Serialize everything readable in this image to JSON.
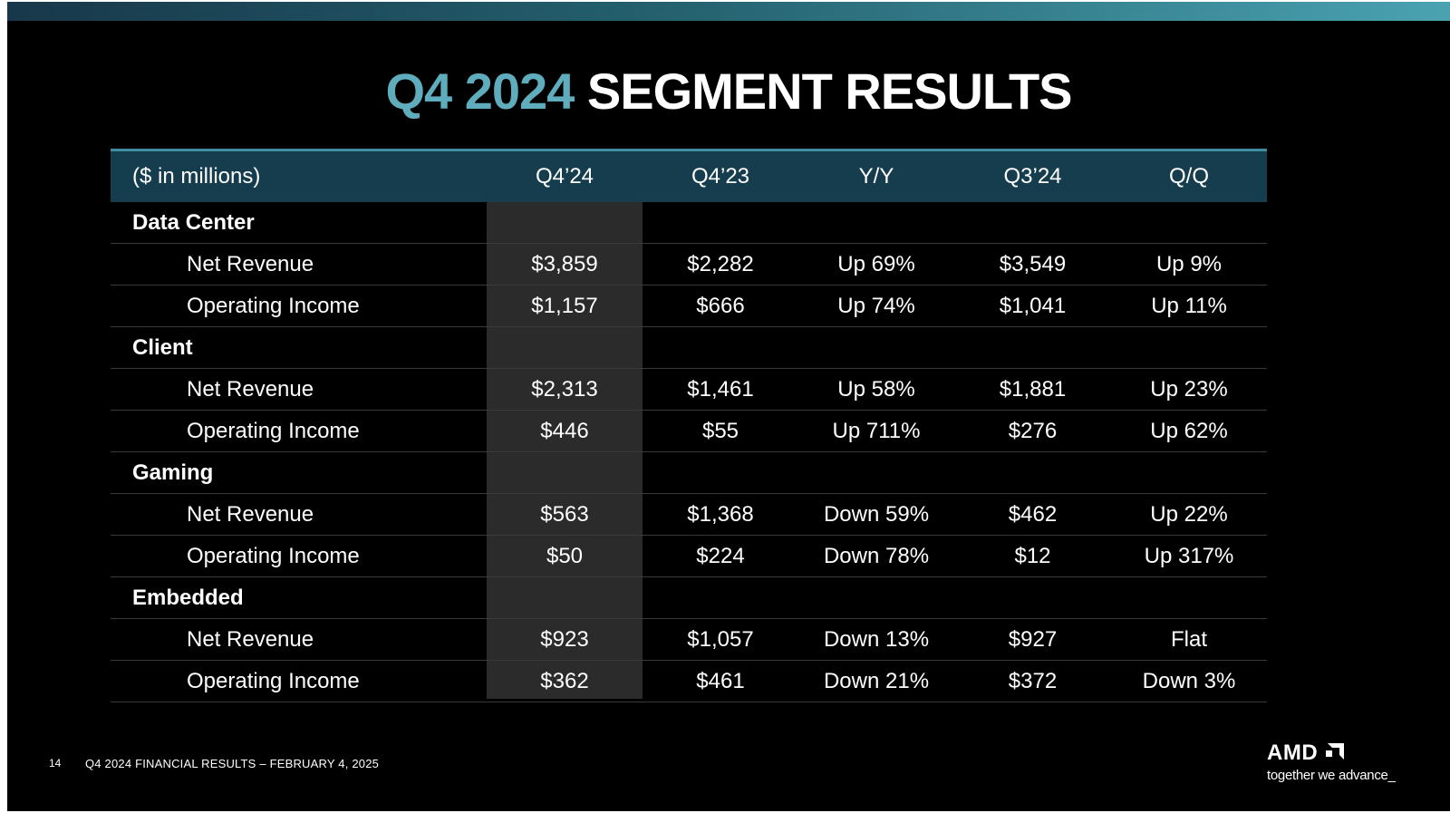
{
  "title": {
    "accent": "Q4 2024",
    "main": "SEGMENT RESULTS"
  },
  "table": {
    "headers": [
      "($ in millions)",
      "Q4’24",
      "Q4’23",
      "Y/Y",
      "Q3’24",
      "Q/Q"
    ],
    "segments": [
      {
        "name": "Data Center",
        "rows": [
          {
            "metric": "Net Revenue",
            "q4_24": "$3,859",
            "q4_23": "$2,282",
            "yy": "Up 69%",
            "q3_24": "$3,549",
            "qq": "Up 9%"
          },
          {
            "metric": "Operating Income",
            "q4_24": "$1,157",
            "q4_23": "$666",
            "yy": "Up 74%",
            "q3_24": "$1,041",
            "qq": "Up 11%"
          }
        ]
      },
      {
        "name": "Client",
        "rows": [
          {
            "metric": "Net Revenue",
            "q4_24": "$2,313",
            "q4_23": "$1,461",
            "yy": "Up 58%",
            "q3_24": "$1,881",
            "qq": "Up 23%"
          },
          {
            "metric": "Operating Income",
            "q4_24": "$446",
            "q4_23": "$55",
            "yy": "Up 711%",
            "q3_24": "$276",
            "qq": "Up 62%"
          }
        ]
      },
      {
        "name": "Gaming",
        "rows": [
          {
            "metric": "Net Revenue",
            "q4_24": "$563",
            "q4_23": "$1,368",
            "yy": "Down 59%",
            "q3_24": "$462",
            "qq": "Up 22%"
          },
          {
            "metric": "Operating Income",
            "q4_24": "$50",
            "q4_23": "$224",
            "yy": "Down 78%",
            "q3_24": "$12",
            "qq": "Up 317%"
          }
        ]
      },
      {
        "name": "Embedded",
        "rows": [
          {
            "metric": "Net Revenue",
            "q4_24": "$923",
            "q4_23": "$1,057",
            "yy": "Down 13%",
            "q3_24": "$927",
            "qq": "Flat"
          },
          {
            "metric": "Operating Income",
            "q4_24": "$362",
            "q4_23": "$461",
            "yy": "Down 21%",
            "q3_24": "$372",
            "qq": "Down 3%"
          }
        ]
      }
    ]
  },
  "footer": {
    "page_number": "14",
    "text": "Q4 2024 FINANCIAL RESULTS – FEBRUARY 4, 2025"
  },
  "logo": {
    "wordmark": "AMD",
    "tagline": "together we advance_"
  },
  "colors": {
    "accent": "#5eacbc",
    "header_bg": "#163d4d",
    "shade": "#2b2b2b",
    "background": "#000000"
  }
}
